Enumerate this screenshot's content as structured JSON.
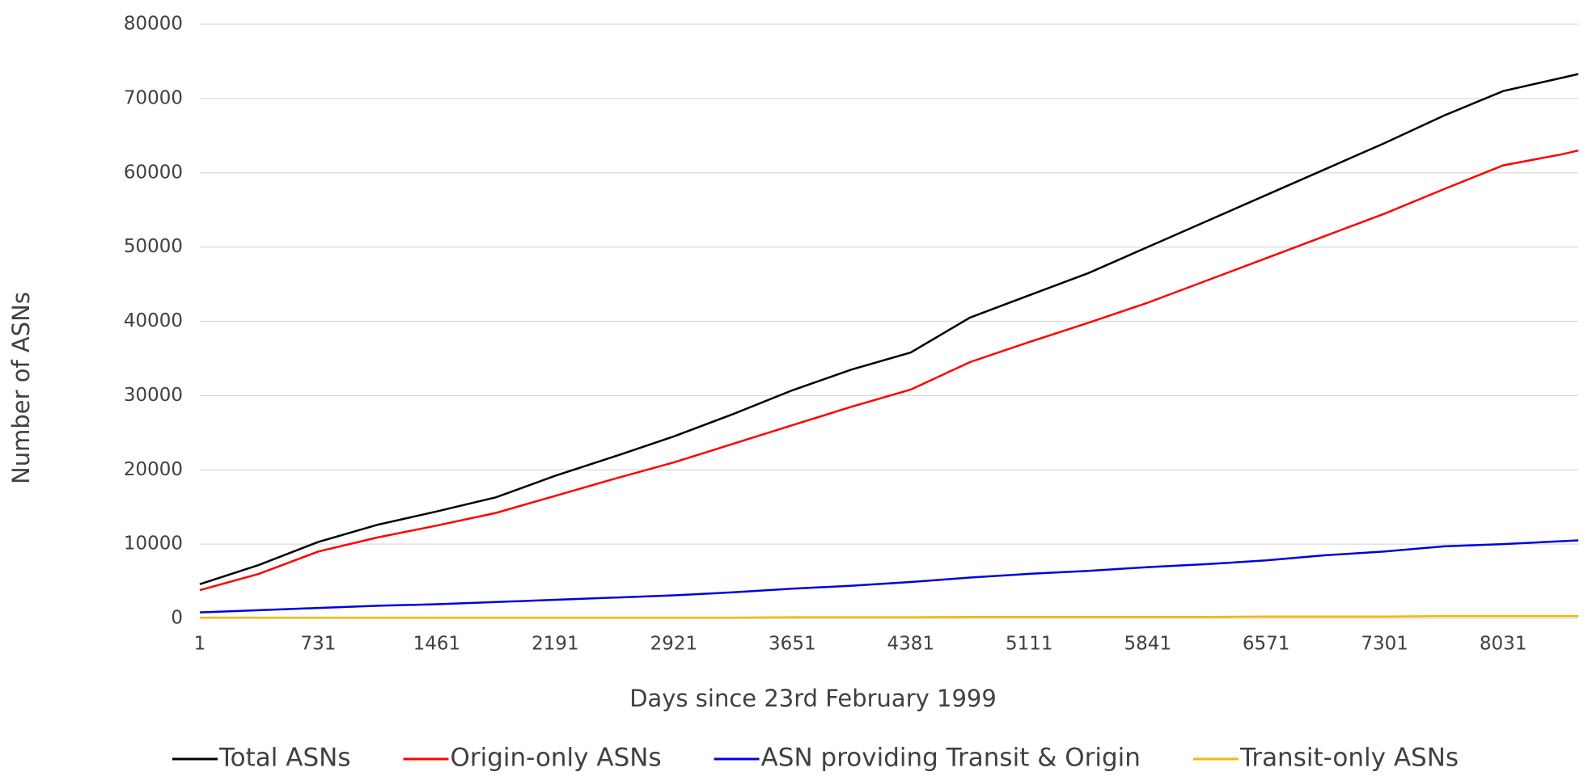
{
  "chart_data": {
    "type": "line",
    "xlabel": "Days since 23rd February 1999",
    "ylabel": "Number of ASNs",
    "x": [
      1,
      365,
      731,
      1096,
      1461,
      1826,
      2191,
      2556,
      2921,
      3286,
      3651,
      4016,
      4381,
      4746,
      5111,
      5476,
      5841,
      6206,
      6571,
      6936,
      7301,
      7666,
      8031,
      8396,
      8494
    ],
    "series": [
      {
        "name": "Total ASNs",
        "color": "#000000",
        "values": [
          4600,
          7200,
          10300,
          12600,
          14400,
          16300,
          19200,
          21800,
          24500,
          27500,
          30700,
          33500,
          35800,
          40500,
          43500,
          46500,
          50000,
          53500,
          57000,
          60500,
          64000,
          67700,
          71000,
          72800,
          73300
        ]
      },
      {
        "name": "Origin-only ASNs",
        "color": "#ff0000",
        "values": [
          3800,
          6000,
          9000,
          10900,
          12500,
          14200,
          16500,
          18800,
          21000,
          23500,
          26000,
          28500,
          30800,
          34500,
          37200,
          39800,
          42500,
          45500,
          48500,
          51500,
          54500,
          57800,
          61000,
          62500,
          63000
        ]
      },
      {
        "name": "ASN providing Transit & Origin",
        "color": "#0000dd",
        "values": [
          800,
          1100,
          1400,
          1700,
          1900,
          2200,
          2500,
          2800,
          3100,
          3500,
          4000,
          4400,
          4900,
          5500,
          6000,
          6400,
          6900,
          7300,
          7800,
          8500,
          9000,
          9700,
          10000,
          10400,
          10500
        ]
      },
      {
        "name": "Transit-only ASNs",
        "color": "#f5b800",
        "values": [
          100,
          100,
          100,
          100,
          100,
          100,
          100,
          100,
          100,
          100,
          150,
          150,
          150,
          200,
          200,
          200,
          200,
          200,
          250,
          250,
          250,
          300,
          300,
          300,
          300
        ]
      }
    ],
    "xlim": [
      1,
      8494
    ],
    "xticks": [
      1,
      731,
      1461,
      2191,
      2921,
      3651,
      4381,
      5111,
      5841,
      6571,
      7301,
      8031
    ],
    "ylim": [
      0,
      80000
    ],
    "yticks": [
      0,
      10000,
      20000,
      30000,
      40000,
      50000,
      60000,
      70000,
      80000
    ],
    "grid": true,
    "legend": "bottom"
  }
}
